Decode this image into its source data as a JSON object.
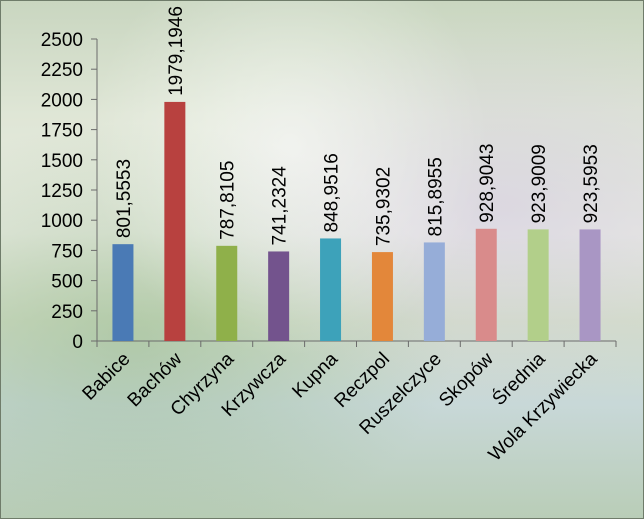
{
  "chart_data": {
    "type": "bar",
    "title": "",
    "xlabel": "",
    "ylabel": "",
    "ylim": [
      0,
      2500
    ],
    "yticks": [
      0,
      250,
      500,
      750,
      1000,
      1250,
      1500,
      1750,
      2000,
      2250,
      2500
    ],
    "grid": false,
    "legend": "none",
    "categories": [
      "Babice",
      "Bachów",
      "Chyrzyna",
      "Krzywcza",
      "Kupna",
      "Reczpol",
      "Ruszelczyce",
      "Skopów",
      "Średnia",
      "Wola Krzywiecka"
    ],
    "values": [
      801.5553,
      1979.1946,
      787.8105,
      741.2324,
      848.9516,
      735.9302,
      815.8955,
      928.9043,
      923.9009,
      923.5953
    ],
    "data_labels": [
      "801,5553",
      "1979,1946",
      "787,8105",
      "741,2324",
      "848,9516",
      "735,9302",
      "815,8955",
      "928,9043",
      "923,9009",
      "923,5953"
    ],
    "colors": [
      "#4a7ab5",
      "#b8413f",
      "#8fb04a",
      "#73538d",
      "#3da2ba",
      "#e3873a",
      "#96add8",
      "#d98b8b",
      "#b2cf8a",
      "#a996c4"
    ]
  }
}
